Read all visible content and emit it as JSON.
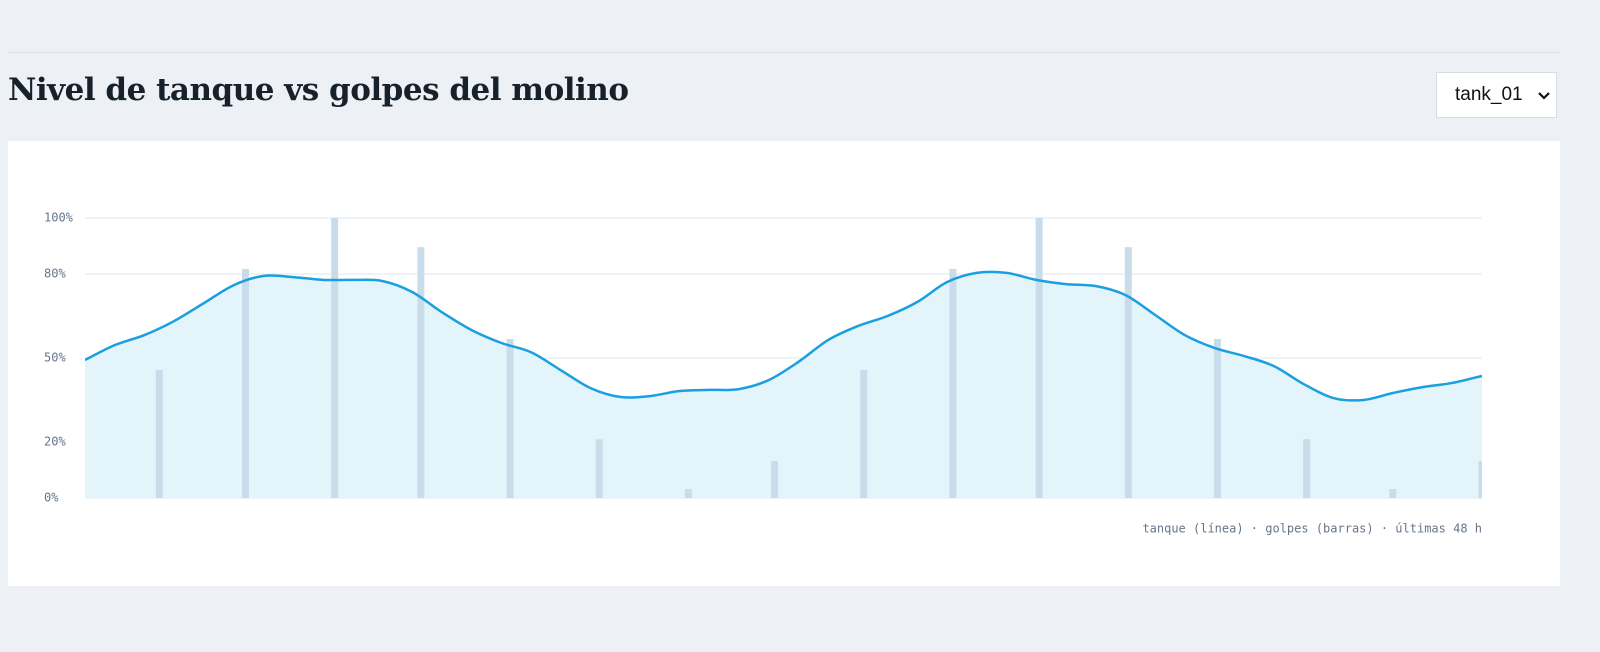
{
  "header": {
    "title": "Nivel de tanque vs golpes del molino",
    "select": "tank_01"
  },
  "chart_data": {
    "type": "combo",
    "caption": "tanque (línea) · golpes (barras) · últimas 48 h",
    "xlim": [
      0,
      47
    ],
    "ylim": [
      0,
      100
    ],
    "yticks": [
      {
        "value": 0,
        "label": "0%"
      },
      {
        "value": 20,
        "label": "20%"
      },
      {
        "value": 50,
        "label": "50%"
      },
      {
        "value": 80,
        "label": "80%"
      },
      {
        "value": 100,
        "label": "100%"
      }
    ],
    "grid": true,
    "series": [
      {
        "type": "bar",
        "color": "#c8dde9",
        "x": [
          2.5,
          5.4,
          8.4,
          11.3,
          14.3,
          17.3,
          20.3,
          23.2,
          26.2,
          29.2,
          32.1,
          35.1,
          38.1,
          41.1,
          44,
          47
        ],
        "values": [
          45.7,
          81.8,
          100,
          89.6,
          56.8,
          21,
          3.2,
          13.2,
          45.7,
          81.8,
          100,
          89.6,
          56.8,
          21,
          3.2,
          13.2
        ]
      },
      {
        "type": "area",
        "color": "#1a9fe0",
        "fill": "#e3f4fb",
        "x": [
          0,
          1,
          2,
          3,
          4,
          5,
          6,
          7,
          8,
          9,
          10,
          11,
          12,
          13,
          14,
          15,
          16,
          17,
          18,
          19,
          20,
          21,
          22,
          23,
          24,
          25,
          26,
          27,
          28,
          29,
          30,
          31,
          32,
          33,
          34,
          35,
          36,
          37,
          38,
          39,
          40,
          41,
          42,
          43,
          44,
          45,
          46,
          47
        ],
        "values": [
          49.3,
          54.6,
          58.2,
          63.2,
          69.6,
          76,
          79.3,
          78.9,
          77.9,
          77.9,
          77.5,
          73.6,
          66.4,
          60,
          55.4,
          52.1,
          45.7,
          39.3,
          36.1,
          36.4,
          38.2,
          38.6,
          38.9,
          42.1,
          48.6,
          56.4,
          61.4,
          65,
          70,
          77.1,
          80.4,
          80.4,
          77.9,
          76.4,
          75.7,
          72.5,
          65.4,
          58.2,
          53.6,
          50.7,
          47.1,
          40.7,
          35.7,
          35,
          37.5,
          39.6,
          41.1,
          43.6
        ]
      }
    ]
  }
}
